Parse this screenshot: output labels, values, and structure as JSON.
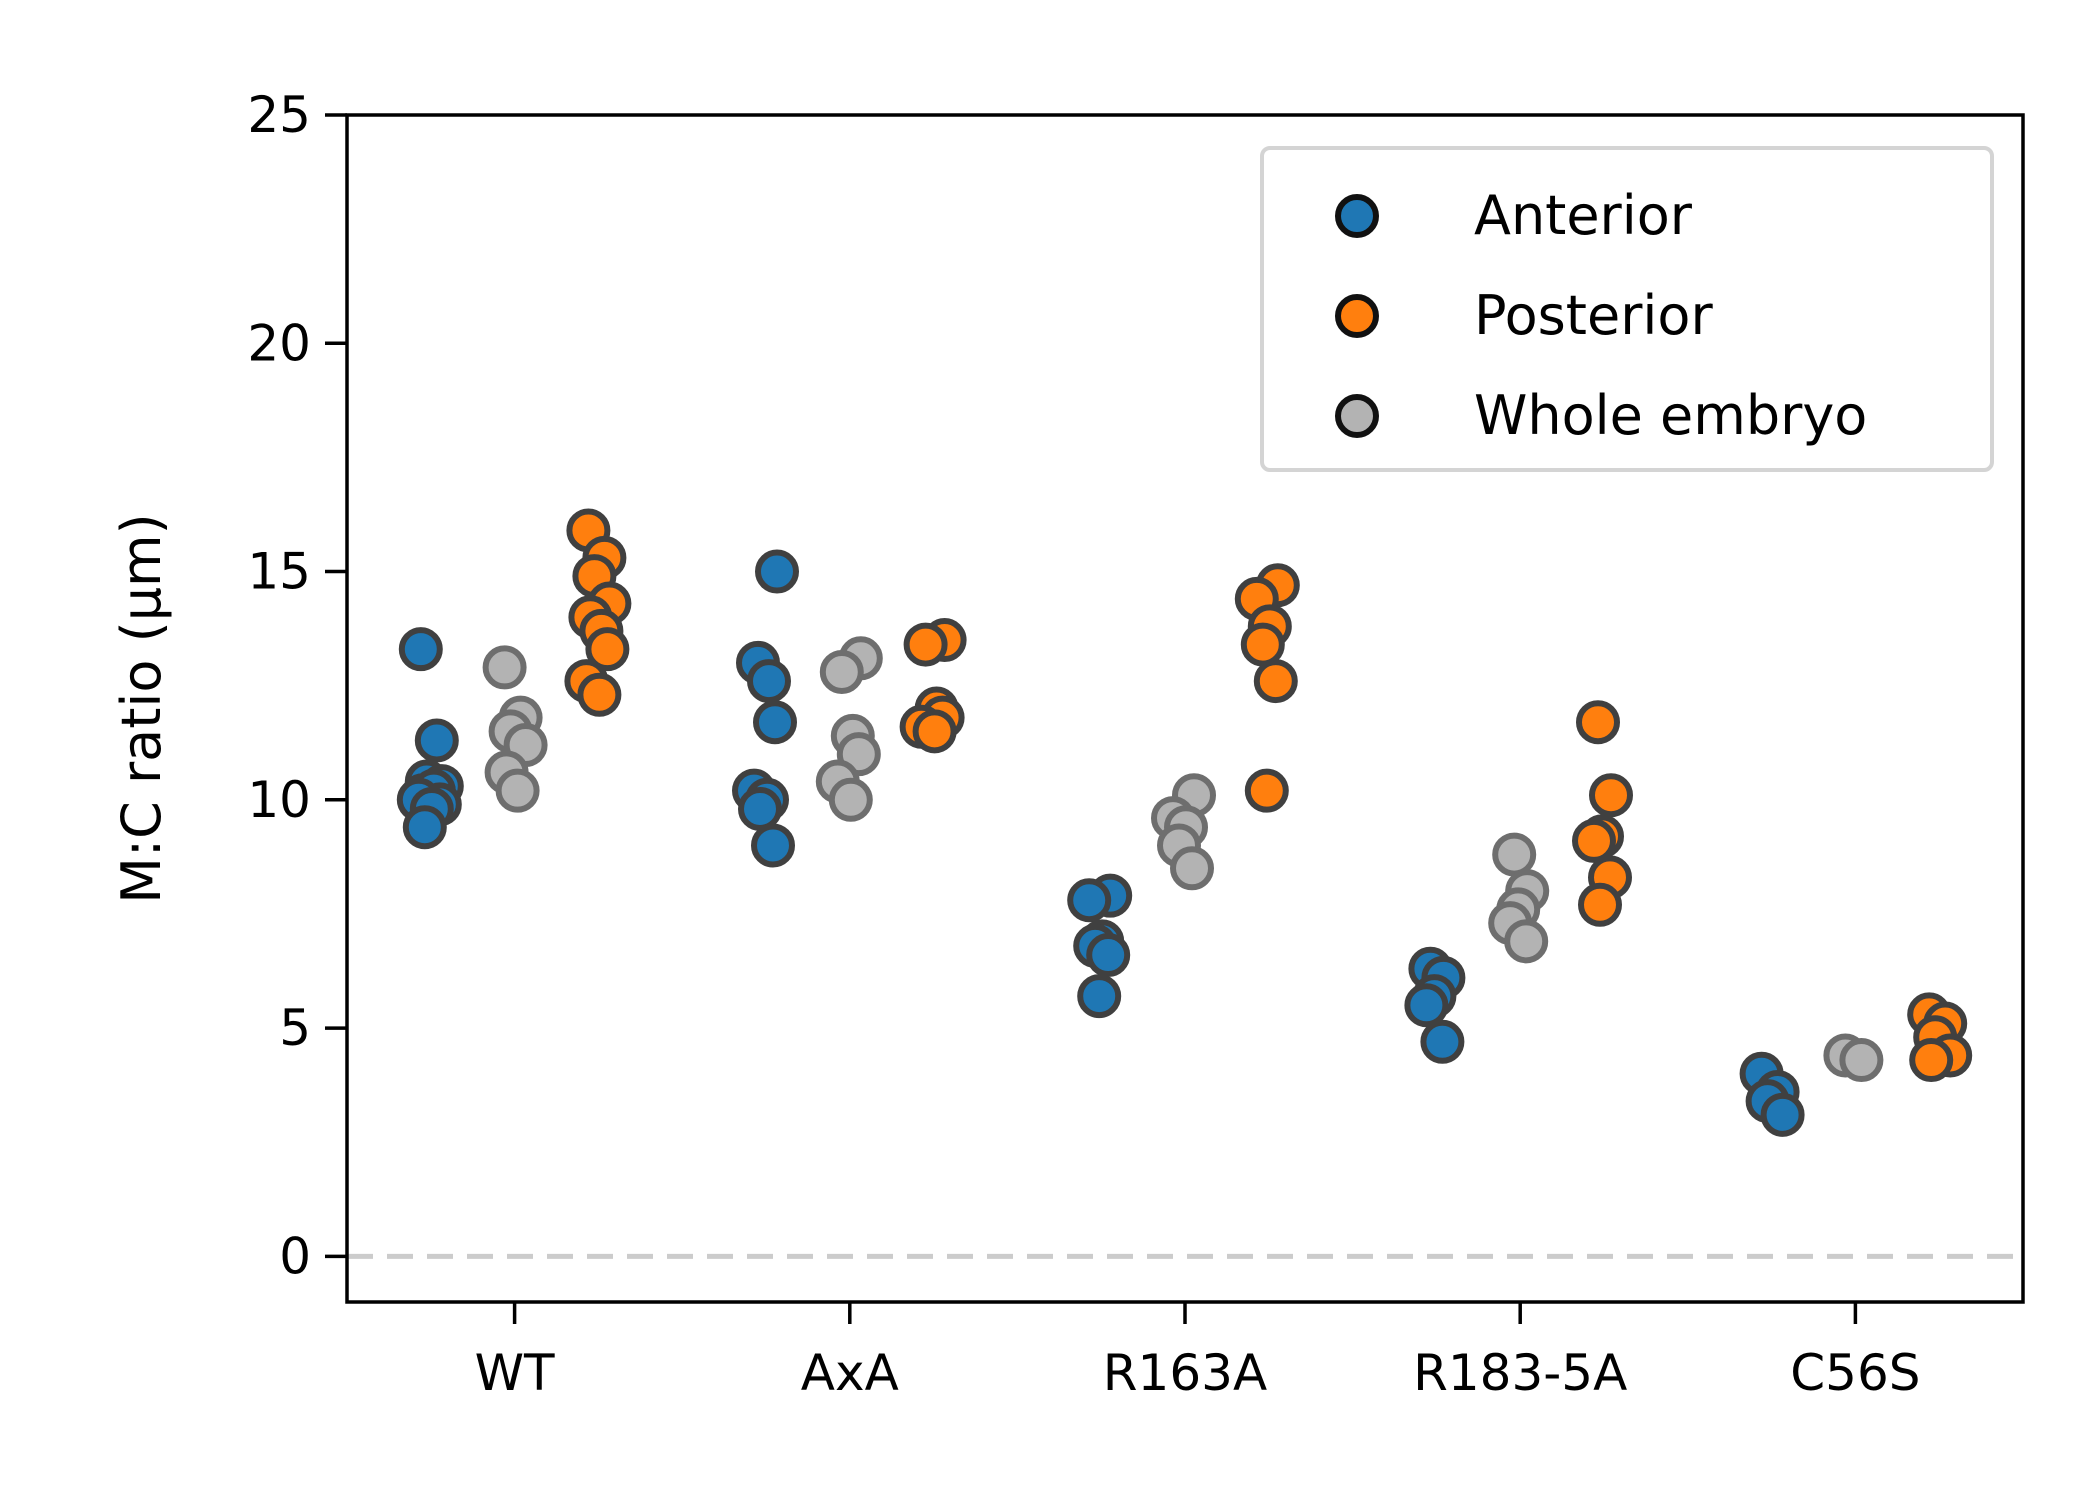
{
  "chart_data": {
    "type": "scatter",
    "title": "",
    "xlabel": "",
    "ylabel": "M:C ratio (µm)",
    "ylim": [
      -1,
      25
    ],
    "yticks": [
      0,
      5,
      10,
      15,
      20,
      25
    ],
    "categories": [
      "WT",
      "AxA",
      "R163A",
      "R183-5A",
      "C56S"
    ],
    "grid": false,
    "legend_position": "top-right",
    "reference_line": {
      "y": 0,
      "style": "dashed",
      "color": "#cccccc"
    },
    "series": [
      {
        "name": "Anterior",
        "color": "#1f77b4",
        "offset": -0.25,
        "values": [
          [
            13.3,
            11.3,
            10.4,
            10.3,
            10.1,
            10.2,
            9.9,
            10.0,
            9.8,
            9.4
          ],
          [
            15.0,
            13.0,
            12.6,
            11.7,
            10.2,
            10.0,
            9.8,
            9.0
          ],
          [
            7.9,
            7.8,
            6.9,
            6.8,
            6.6,
            5.7
          ],
          [
            6.3,
            6.1,
            5.7,
            5.5,
            4.7
          ],
          [
            4.0,
            3.6,
            3.4,
            3.1
          ]
        ]
      },
      {
        "name": "Posterior",
        "color": "#ff7f0e",
        "offset": 0.25,
        "values": [
          [
            15.9,
            15.3,
            14.9,
            14.3,
            14.0,
            13.7,
            13.3,
            12.6,
            12.3
          ],
          [
            13.5,
            13.4,
            12.0,
            11.8,
            11.6,
            11.5
          ],
          [
            14.7,
            14.4,
            13.8,
            13.4,
            12.6,
            10.2
          ],
          [
            11.7,
            10.1,
            9.2,
            9.1,
            8.3,
            7.7
          ],
          [
            5.3,
            5.1,
            4.8,
            4.4,
            4.3
          ]
        ]
      },
      {
        "name": "Whole embryo",
        "color": "#b3b3b3",
        "offset": 0.0,
        "values": [
          [
            12.9,
            11.8,
            11.5,
            11.2,
            10.6,
            10.2
          ],
          [
            13.1,
            12.8,
            11.4,
            11.0,
            10.4,
            10.0
          ],
          [
            10.1,
            9.6,
            9.4,
            9.0,
            8.5
          ],
          [
            8.8,
            8.0,
            7.6,
            7.3,
            6.9
          ],
          [
            4.4,
            4.3
          ]
        ]
      }
    ]
  }
}
